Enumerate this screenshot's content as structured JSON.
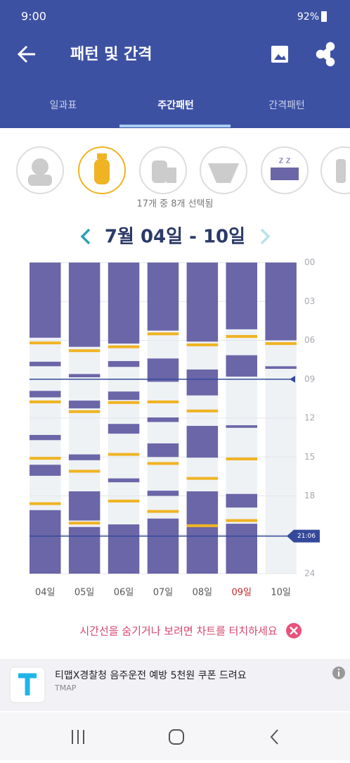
{
  "status_bar": {
    "time": "9:00",
    "battery": "92%"
  },
  "app_bar": {
    "title": "패턴 및 간격"
  },
  "tabs": {
    "items": [
      "일과표",
      "주간패턴",
      "간격패턴"
    ],
    "selected": 1
  },
  "selection_note": "17개 중 8개 선택됨",
  "date_range": "7월 04일 - 10일",
  "chart_data": {
    "type": "timeline",
    "categories": [
      "04일",
      "05일",
      "06일",
      "07일",
      "08일",
      "09일",
      "10일"
    ],
    "highlight_index": 5,
    "highlight_color": "#c62828",
    "ylim": [
      0,
      24
    ],
    "yticks": [
      {
        "value": 0,
        "label": "00"
      },
      {
        "value": 3,
        "label": "03"
      },
      {
        "value": 6,
        "label": "06"
      },
      {
        "value": 9,
        "label": "09"
      },
      12,
      15,
      18,
      {
        "value": 21,
        "label": null
      },
      24
    ],
    "sleep_color": "#6b66a8",
    "feed_color": "#f0b323",
    "sleep": [
      [
        [
          0,
          5.8
        ],
        [
          7.65,
          8.0
        ],
        [
          9.9,
          10.4
        ],
        [
          13.3,
          13.7
        ],
        [
          15.6,
          16.45
        ],
        [
          19.1,
          24
        ]
      ],
      [
        [
          0,
          6.5
        ],
        [
          8.6,
          8.85
        ],
        [
          10.65,
          11.25
        ],
        [
          14.8,
          15.25
        ],
        [
          17.65,
          19.9
        ],
        [
          20.4,
          24
        ]
      ],
      [
        [
          0,
          6.25
        ],
        [
          7.6,
          8.05
        ],
        [
          9.95,
          10.6
        ],
        [
          12.45,
          13.2
        ],
        [
          16.65,
          16.95
        ],
        [
          20.2,
          24
        ]
      ],
      [
        [
          0,
          5.25
        ],
        [
          7.4,
          9.2
        ],
        [
          11.95,
          12.3
        ],
        [
          13.95,
          15.0
        ],
        [
          17.6,
          18.0
        ],
        [
          19.75,
          24
        ]
      ],
      [
        [
          0,
          6.1
        ],
        [
          8.25,
          10.25
        ],
        [
          12.6,
          15.05
        ],
        [
          17.65,
          20.2
        ],
        [
          20.4,
          24
        ]
      ],
      [
        [
          0,
          5.15
        ],
        [
          7.15,
          8.8
        ],
        [
          12.55,
          12.75
        ],
        [
          17.85,
          18.9
        ],
        [
          20.15,
          24
        ]
      ],
      [
        [
          0,
          6.0
        ],
        [
          8.0,
          8.2
        ]
      ]
    ],
    "feeds": [
      [
        6.2,
        10.75,
        15.1,
        18.6
      ],
      [
        6.8,
        11.5,
        16.1,
        20.1
      ],
      [
        6.5,
        10.8,
        14.8,
        18.4
      ],
      [
        5.5,
        10.75,
        15.5,
        19.2
      ],
      [
        6.35,
        11.45,
        16.65,
        20.3
      ],
      [
        5.7,
        15.15,
        19.9
      ],
      [
        6.25
      ]
    ],
    "reference_lines": [
      {
        "value": 9
      },
      {
        "value": 21.1,
        "label": "21:06"
      }
    ],
    "reference_color": "#34499a"
  },
  "hint": "시간선을 숨기거나 보려면 차트를 터치하세요",
  "ad": {
    "title": "티맵X경찰청 음주운전 예방 5천원 쿠폰 드려요",
    "source": "TMAP"
  }
}
